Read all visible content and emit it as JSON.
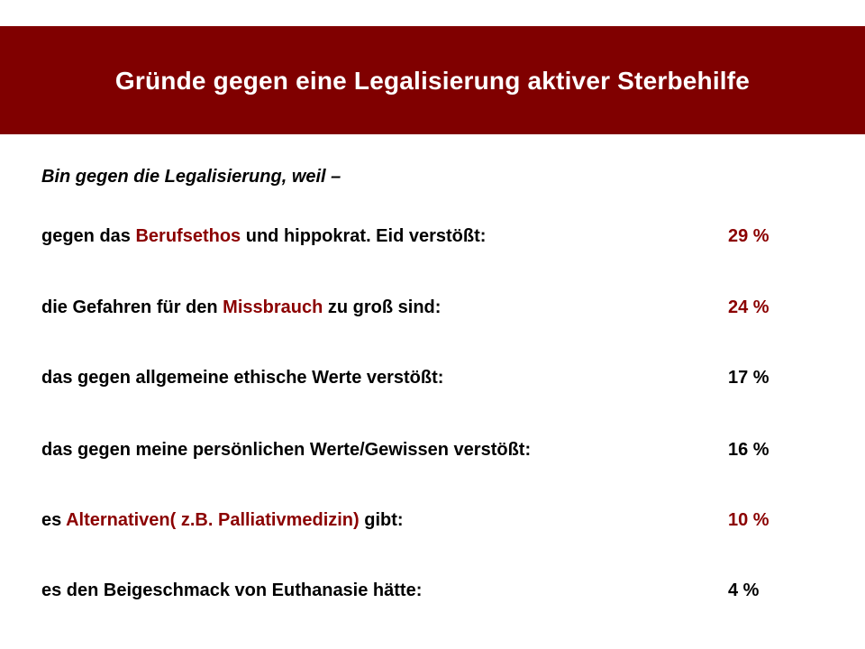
{
  "slide": {
    "title": "Gründe gegen eine Legalisierung aktiver Sterbehilfe",
    "intro": "Bin gegen die Legalisierung, weil –",
    "accent_color": "#8b0000",
    "title_bar_color": "#800000",
    "rows": [
      {
        "pre": "gegen das ",
        "hl": "Berufsethos",
        "post": " und hippokrat. Eid verstößt:",
        "value": "29 %",
        "value_color": "red"
      },
      {
        "pre": "die Gefahren für den ",
        "hl": "Missbrauch",
        "post": " zu groß sind:",
        "value": "24 %",
        "value_color": "red"
      },
      {
        "pre": "das gegen allgemeine ethische Werte verstößt:",
        "hl": "",
        "post": "",
        "value": "17 %",
        "value_color": "black"
      },
      {
        "pre": "das gegen meine persönlichen Werte/Gewissen verstößt:",
        "hl": "",
        "post": "",
        "value": "16 %",
        "value_color": "black"
      },
      {
        "pre": "es ",
        "hl": "Alternativen( z.B. Palliativmedizin)",
        "post": " gibt:",
        "value": "10 %",
        "value_color": "red"
      },
      {
        "pre": "es den Beigeschmack von Euthanasie hätte:",
        "hl": "",
        "post": "",
        "value": "4 %",
        "value_color": "black"
      }
    ]
  }
}
